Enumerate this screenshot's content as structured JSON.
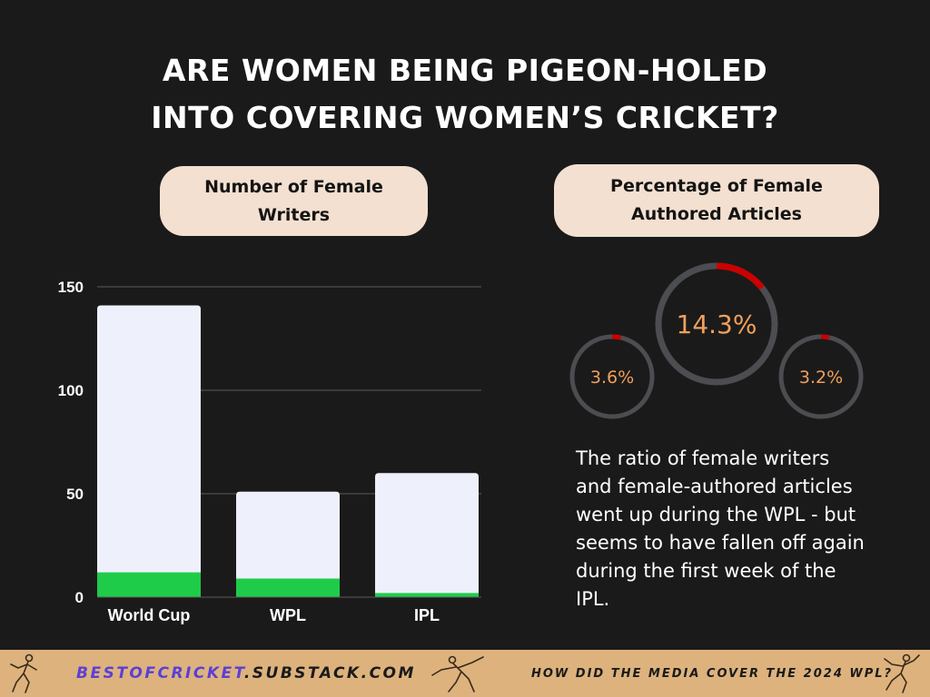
{
  "title": {
    "line1": "ARE WOMEN BEING PIGEON-HOLED",
    "line2": "INTO COVERING WOMEN’S CRICKET?"
  },
  "left_pill": {
    "line1": "Number of Female",
    "line2": "Writers"
  },
  "right_pill": {
    "line1": "Percentage of Female",
    "line2": "Authored Articles"
  },
  "chart_data": [
    {
      "type": "bar",
      "stacked": false,
      "categories": [
        "World Cup",
        "WPL",
        "IPL"
      ],
      "series": [
        {
          "values": [
            141,
            51,
            60
          ],
          "color": "#eef0fb"
        },
        {
          "values": [
            12,
            9,
            2
          ],
          "color": "#1fcc4a"
        }
      ],
      "yticks": [
        0,
        50,
        100,
        150
      ],
      "ylim": [
        0,
        150
      ],
      "grid": true
    },
    {
      "type": "pie",
      "variant": "donut",
      "categories": [
        "World Cup",
        "WPL",
        "IPL"
      ],
      "values": [
        3.6,
        14.3,
        3.2
      ],
      "labels": [
        "3.6%",
        "14.3%",
        "3.2%"
      ],
      "colors": {
        "track": "#4b4d51",
        "fill": "#cc0000",
        "label": "#f0a05c"
      }
    }
  ],
  "note": "The ratio of female writers and female-authored articles went up during the WPL - but seems to have fallen off again during the first week of the IPL.",
  "footer": {
    "brand_colored": "BESTOFCRICKET",
    "brand_rest": ".SUBSTACK.COM",
    "tagline": "HOW DID THE MEDIA COVER THE 2024 WPL?",
    "icons": [
      "cricketer-icon",
      "cricketer-icon",
      "cricketer-icon"
    ]
  }
}
